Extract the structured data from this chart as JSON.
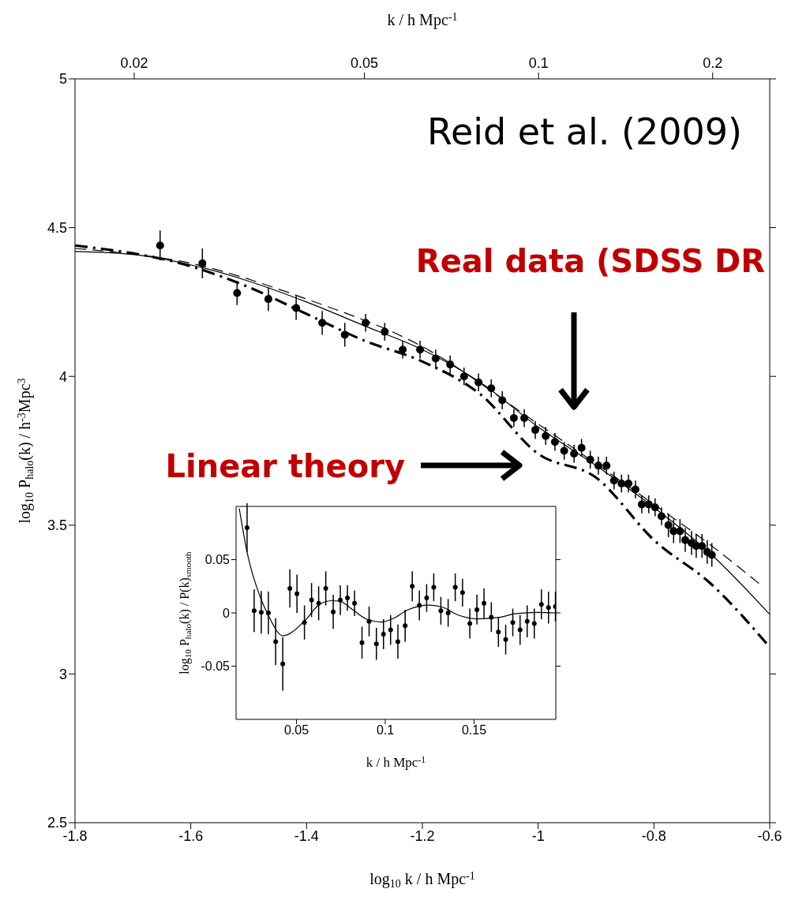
{
  "chart_data": [
    {
      "type": "scatter",
      "xlabel": "log$_{10}$ k / h Mpc$^{-1}$",
      "ylabel": "log$_{10}$ P$_{halo}$(k) / h$^{-3}$Mpc$^{3}$",
      "x2label": "k / h Mpc$^{-1}$",
      "xlim": [
        -1.8,
        -0.6
      ],
      "xticks": [
        -1.8,
        -1.6,
        -1.4,
        -1.2,
        -1,
        -0.8,
        -0.6
      ],
      "ylim": [
        2.5,
        5
      ],
      "yticks": [
        2.5,
        3,
        3.5,
        4,
        4.5,
        5
      ],
      "x2lim": [
        0.0158,
        0.251
      ],
      "x2ticks": [
        0.02,
        0.05,
        0.1,
        0.2
      ],
      "log": "x2",
      "series": [
        {
          "type": "scatter",
          "color": "#000000",
          "marker": "circle",
          "x": [
            -1.653,
            -1.58,
            -1.52,
            -1.466,
            -1.418,
            -1.373,
            -1.334,
            -1.298,
            -1.265,
            -1.234,
            -1.204,
            -1.177,
            -1.152,
            -1.128,
            -1.103,
            -1.081,
            -1.062,
            -1.042,
            -1.024,
            -1.005,
            -0.987,
            -0.971,
            -0.955,
            -0.938,
            -0.925,
            -0.91,
            -0.896,
            -0.882,
            -0.869,
            -0.856,
            -0.844,
            -0.832,
            -0.821,
            -0.809,
            -0.798,
            -0.787,
            -0.775,
            -0.766,
            -0.755,
            -0.746,
            -0.735,
            -0.727,
            -0.717,
            -0.708,
            -0.7
          ],
          "values": [
            4.44,
            4.38,
            4.28,
            4.26,
            4.23,
            4.18,
            4.14,
            4.18,
            4.15,
            4.09,
            4.09,
            4.06,
            4.04,
            4.0,
            3.98,
            3.96,
            3.92,
            3.86,
            3.86,
            3.82,
            3.8,
            3.78,
            3.75,
            3.74,
            3.76,
            3.72,
            3.7,
            3.7,
            3.65,
            3.64,
            3.64,
            3.62,
            3.57,
            3.57,
            3.56,
            3.53,
            3.5,
            3.48,
            3.48,
            3.45,
            3.44,
            3.43,
            3.43,
            3.41,
            3.4
          ],
          "errors": [
            0.05,
            0.05,
            0.04,
            0.04,
            0.04,
            0.04,
            0.04,
            0.03,
            0.03,
            0.03,
            0.03,
            0.03,
            0.03,
            0.03,
            0.03,
            0.03,
            0.03,
            0.03,
            0.03,
            0.03,
            0.03,
            0.03,
            0.03,
            0.03,
            0.03,
            0.03,
            0.03,
            0.03,
            0.03,
            0.03,
            0.03,
            0.03,
            0.03,
            0.03,
            0.03,
            0.03,
            0.04,
            0.04,
            0.04,
            0.04,
            0.04,
            0.04,
            0.04,
            0.04,
            0.04
          ]
        },
        {
          "type": "line",
          "color": "#000000",
          "line_style": "solid",
          "x": [
            -1.8,
            -1.7,
            -1.6,
            -1.5,
            -1.4,
            -1.3,
            -1.2,
            -1.1,
            -1.0,
            -0.9,
            -0.8,
            -0.7,
            -0.6
          ],
          "values": [
            4.42,
            4.41,
            4.375,
            4.32,
            4.25,
            4.17,
            4.09,
            3.98,
            3.83,
            3.7,
            3.56,
            3.4,
            3.2
          ]
        },
        {
          "type": "line",
          "color": "#000000",
          "line_style": "dashed",
          "x": [
            -1.8,
            -1.6,
            -1.4,
            -1.2,
            -1.0,
            -0.8,
            -0.7,
            -0.616
          ],
          "values": [
            4.43,
            4.38,
            4.26,
            4.1,
            3.84,
            3.57,
            3.43,
            3.3
          ]
        },
        {
          "type": "line",
          "color": "#000000",
          "line_style": "dotted",
          "x": [
            -1.8,
            -1.6,
            -1.5,
            -1.4,
            -1.3,
            -1.2,
            -1.1,
            -1.0,
            -0.9,
            -0.8,
            -0.7,
            -0.6
          ],
          "values": [
            4.44,
            4.37,
            4.3,
            4.21,
            4.12,
            4.05,
            3.94,
            3.74,
            3.66,
            3.45,
            3.3,
            3.09
          ]
        }
      ],
      "annotations": [
        "Reid et al. (2009)",
        "Real data (SDSS DR",
        "Linear theory"
      ]
    },
    {
      "type": "scatter",
      "xlabel": "k / h Mpc$^{-1}$",
      "ylabel": "log$_{10}$ P$_{halo}$(k) / P(k)$_{smooth}$",
      "xlim": [
        0.016,
        0.196
      ],
      "xticks": [
        0.05,
        0.1,
        0.15
      ],
      "ylim": [
        -0.1,
        0.1
      ],
      "yticks": [
        -0.05,
        0,
        0.05
      ],
      "series": [
        {
          "type": "scatter",
          "color": "#000000",
          "marker": "circle",
          "x": [
            0.0222,
            0.0262,
            0.0302,
            0.0342,
            0.0383,
            0.0423,
            0.0463,
            0.0503,
            0.0545,
            0.0585,
            0.0625,
            0.0665,
            0.0707,
            0.0747,
            0.0787,
            0.0827,
            0.0869,
            0.0909,
            0.095,
            0.099,
            0.103,
            0.1071,
            0.1112,
            0.1152,
            0.1192,
            0.1233,
            0.1273,
            0.1313,
            0.1354,
            0.1394,
            0.1435,
            0.1476,
            0.1516,
            0.1556,
            0.1597,
            0.1637,
            0.1678,
            0.1718,
            0.1759,
            0.1799,
            0.1839,
            0.1879,
            0.1919,
            0.1958
          ],
          "values": [
            0.08,
            0.002,
            0.0005,
            0,
            -0.027,
            -0.048,
            0.023,
            0.018,
            -0.009,
            0.012,
            0.009,
            0.023,
            0.001,
            0.012,
            0.014,
            0.009,
            -0.028,
            -0.008,
            -0.029,
            -0.02,
            -0.016,
            -0.027,
            -0.012,
            0.025,
            0.007,
            0.014,
            0.024,
            0.002,
            0,
            0.024,
            0.019,
            -0.01,
            0.003,
            0.009,
            -0.004,
            -0.018,
            -0.025,
            -0.009,
            -0.016,
            -0.008,
            -0.01,
            0.008,
            0.005,
            0.006
          ],
          "errors": [
            0.023,
            0.02,
            0.02,
            0.02,
            0.022,
            0.025,
            0.018,
            0.018,
            0.016,
            0.016,
            0.016,
            0.016,
            0.016,
            0.014,
            0.012,
            0.012,
            0.015,
            0.014,
            0.015,
            0.014,
            0.014,
            0.016,
            0.015,
            0.014,
            0.014,
            0.013,
            0.013,
            0.013,
            0.013,
            0.013,
            0.013,
            0.014,
            0.014,
            0.014,
            0.014,
            0.014,
            0.014,
            0.013,
            0.014,
            0.015,
            0.014,
            0.014,
            0.015,
            0.014
          ]
        },
        {
          "type": "line",
          "color": "#000000",
          "line_style": "solid",
          "x": [
            0.0178,
            0.0222,
            0.0296,
            0.0341,
            0.0423,
            0.0549,
            0.0623,
            0.0698,
            0.0742,
            0.0817,
            0.0891,
            0.098,
            0.104,
            0.1129,
            0.1247,
            0.1322,
            0.1411,
            0.1515,
            0.1634,
            0.1738,
            0.1857,
            0.196
          ],
          "values": [
            0.098,
            0.057,
            0.015,
            -0.002,
            -0.0215,
            -0.007,
            0.007,
            0.0115,
            0.011,
            0.003,
            -0.0056,
            -0.0086,
            -0.0056,
            0.003,
            0.0073,
            0.0054,
            -0.002,
            -0.0056,
            -0.0044,
            -0.0007,
            0.0005,
            0
          ]
        }
      ]
    }
  ]
}
